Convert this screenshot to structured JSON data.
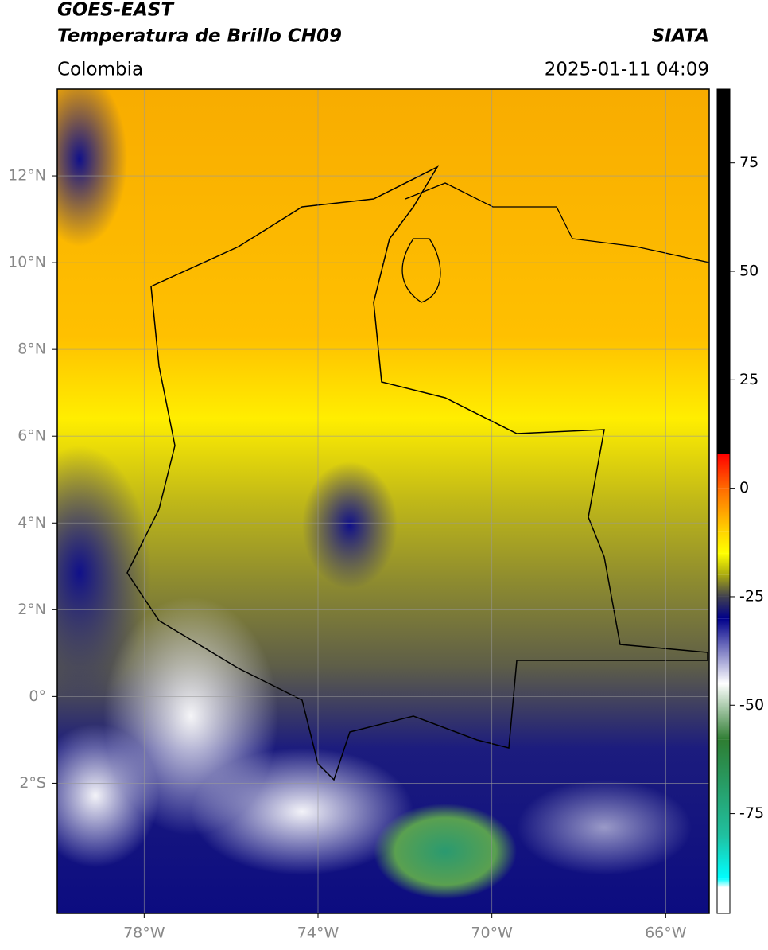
{
  "chart_data": {
    "type": "map",
    "title": "GOES-EAST",
    "subtitle": "Temperatura de Brillo CH09",
    "source": "SIATA",
    "region": "Colombia",
    "datetime": "2025-01-11 04:09",
    "xlim": [
      -80,
      -65
    ],
    "ylim": [
      -5,
      14
    ],
    "xticks": [
      {
        "value": -78,
        "label": "78°W"
      },
      {
        "value": -74,
        "label": "74°W"
      },
      {
        "value": -70,
        "label": "70°W"
      },
      {
        "value": -66,
        "label": "66°W"
      }
    ],
    "yticks": [
      {
        "value": 12,
        "label": "12°N"
      },
      {
        "value": 10,
        "label": "10°N"
      },
      {
        "value": 8,
        "label": "8°N"
      },
      {
        "value": 6,
        "label": "6°N"
      },
      {
        "value": 4,
        "label": "4°N"
      },
      {
        "value": 2,
        "label": "2°N"
      },
      {
        "value": 0,
        "label": "0°"
      },
      {
        "value": -2,
        "label": "2°S"
      }
    ],
    "grid": true,
    "colorbar": {
      "lim": [
        -98,
        92
      ],
      "ticks": [
        75,
        50,
        25,
        0,
        -25,
        -50,
        -75
      ],
      "stops": [
        {
          "value": 92,
          "color": "#000000"
        },
        {
          "value": 8,
          "color": "#000000"
        },
        {
          "value": 7.9,
          "color": "#ff0000"
        },
        {
          "value": 0,
          "color": "#ff6a00"
        },
        {
          "value": -10,
          "color": "#ffd400"
        },
        {
          "value": -15,
          "color": "#ffff00"
        },
        {
          "value": -20,
          "color": "#aaaa10"
        },
        {
          "value": -25,
          "color": "#404050"
        },
        {
          "value": -30,
          "color": "#00008a"
        },
        {
          "value": -45,
          "color": "#ffffff"
        },
        {
          "value": -58,
          "color": "#2e7d32"
        },
        {
          "value": -80,
          "color": "#20c0a0"
        },
        {
          "value": -90,
          "color": "#00ffff"
        },
        {
          "value": -92,
          "color": "#ffffff"
        },
        {
          "value": -98,
          "color": "#ffffff"
        }
      ]
    }
  }
}
